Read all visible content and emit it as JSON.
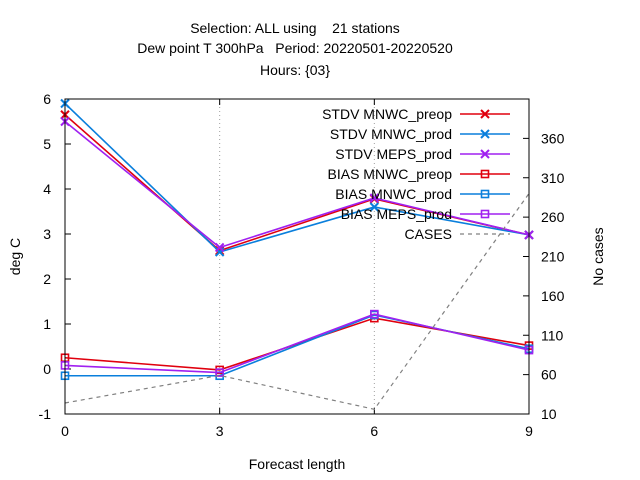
{
  "title": {
    "line1": "Selection: ALL using    21 stations",
    "line2": "Dew point T 300hPa   Period: 20220501-20220520",
    "line3": "Hours: {03}"
  },
  "chart_data": {
    "type": "line",
    "xlabel": "Forecast length",
    "ylabel": "deg C",
    "y2label": "No cases",
    "x": [
      0,
      3,
      6,
      9
    ],
    "x_ticks": [
      "0",
      "3",
      "6",
      "9"
    ],
    "xlim": [
      0,
      9
    ],
    "ylim": [
      -1,
      6
    ],
    "y_ticks": [
      "-1",
      "0",
      "1",
      "2",
      "3",
      "4",
      "5",
      "6"
    ],
    "y2lim": [
      10,
      410
    ],
    "y2_ticks": [
      "10",
      "60",
      "110",
      "160",
      "210",
      "260",
      "310",
      "360"
    ],
    "grid": "vertical dotted at x ticks",
    "legend_position": "top-right",
    "series": [
      {
        "name": "STDV MNWC_preop",
        "axis": "y1",
        "color": "#e0000e",
        "marker": "x",
        "values": [
          5.65,
          2.63,
          3.78,
          2.98
        ]
      },
      {
        "name": "STDV MNWC_prod",
        "axis": "y1",
        "color": "#0a7fdc",
        "marker": "x",
        "values": [
          5.9,
          2.6,
          3.6,
          2.98
        ]
      },
      {
        "name": "STDV MEPS_prod",
        "axis": "y1",
        "color": "#a020f0",
        "marker": "x",
        "values": [
          5.5,
          2.7,
          3.8,
          2.98
        ]
      },
      {
        "name": "BIAS MNWC_preop",
        "axis": "y1",
        "color": "#e0000e",
        "marker": "square",
        "values": [
          0.25,
          -0.02,
          1.13,
          0.52
        ]
      },
      {
        "name": "BIAS MNWC_prod",
        "axis": "y1",
        "color": "#0a7fdc",
        "marker": "square",
        "values": [
          -0.15,
          -0.15,
          1.2,
          0.45
        ]
      },
      {
        "name": "BIAS MEPS_prod",
        "axis": "y1",
        "color": "#a020f0",
        "marker": "square",
        "values": [
          0.08,
          -0.08,
          1.22,
          0.42
        ]
      },
      {
        "name": "CASES",
        "axis": "y2",
        "color": "#808080",
        "marker": "none",
        "dashed": true,
        "values": [
          24,
          59,
          16,
          290
        ]
      }
    ]
  }
}
